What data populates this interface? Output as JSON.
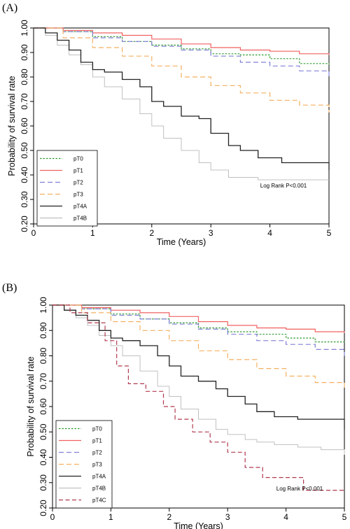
{
  "figure": {
    "panels": [
      {
        "label": "(A)",
        "note": "Log Rank P<0.001"
      },
      {
        "label": "(B)",
        "note": "Log Rank P<0.001"
      }
    ]
  },
  "colors": {
    "pT0": "#2e9a2e",
    "pT1": "#f06060",
    "pT2": "#8080d8",
    "pT3": "#f4b060",
    "pT4A": "#222222",
    "pT4B": "#c0c0c0",
    "pT4C": "#b03a4e"
  },
  "chart_data": [
    {
      "type": "line",
      "panel": "(A)",
      "xlabel": "Time (Years)",
      "ylabel": "Probability of survival rate",
      "xlim": [
        0,
        5
      ],
      "ylim": [
        0.2,
        1.0
      ],
      "xticks": [
        "0",
        "1",
        "2",
        "3",
        "4",
        "5"
      ],
      "yticks": [
        "0.20",
        "0.30",
        "0.40",
        "0.50",
        "0.60",
        "0.70",
        "0.80",
        "0.90",
        "1.00"
      ],
      "legend_position": "bottom-left",
      "annotation": "Log Rank P<0.001",
      "series": [
        {
          "name": "pT0",
          "style": "dotted",
          "x": [
            0,
            0.5,
            1,
            1.5,
            2,
            2.5,
            3,
            3.5,
            4,
            4.5,
            5
          ],
          "y": [
            1.0,
            0.985,
            0.965,
            0.945,
            0.93,
            0.915,
            0.895,
            0.89,
            0.875,
            0.855,
            0.85
          ]
        },
        {
          "name": "pT1",
          "style": "solid",
          "x": [
            0,
            0.5,
            1,
            1.5,
            2,
            2.5,
            3,
            3.5,
            4,
            4.5,
            5
          ],
          "y": [
            1.0,
            0.99,
            0.98,
            0.97,
            0.955,
            0.935,
            0.92,
            0.91,
            0.905,
            0.895,
            0.89
          ]
        },
        {
          "name": "pT2",
          "style": "dashed",
          "x": [
            0,
            0.5,
            1,
            1.5,
            2,
            2.5,
            3,
            3.5,
            4,
            4.5,
            5
          ],
          "y": [
            1.0,
            0.985,
            0.96,
            0.945,
            0.925,
            0.91,
            0.885,
            0.86,
            0.845,
            0.825,
            0.8
          ]
        },
        {
          "name": "pT3",
          "style": "dashed",
          "x": [
            0,
            0.5,
            1,
            1.5,
            2,
            2.5,
            3,
            3.5,
            4,
            4.5,
            5
          ],
          "y": [
            1.0,
            0.96,
            0.92,
            0.885,
            0.845,
            0.8,
            0.765,
            0.735,
            0.705,
            0.685,
            0.655
          ]
        },
        {
          "name": "pT4A",
          "style": "solid-step",
          "x": [
            0,
            0.2,
            0.4,
            0.6,
            0.8,
            1.0,
            1.2,
            1.5,
            1.8,
            2.0,
            2.2,
            2.5,
            2.8,
            3.0,
            3.3,
            3.5,
            3.8,
            4.2,
            4.6,
            5.0
          ],
          "y": [
            1.0,
            0.98,
            0.95,
            0.91,
            0.86,
            0.83,
            0.82,
            0.79,
            0.76,
            0.7,
            0.68,
            0.64,
            0.63,
            0.57,
            0.52,
            0.5,
            0.47,
            0.45,
            0.45,
            0.42
          ]
        },
        {
          "name": "pT4B",
          "style": "solid-step",
          "x": [
            0,
            0.2,
            0.4,
            0.6,
            0.8,
            1.0,
            1.2,
            1.5,
            1.8,
            2.0,
            2.2,
            2.5,
            2.8,
            3.0,
            3.3,
            3.5,
            3.8,
            4.2,
            4.6,
            5.0
          ],
          "y": [
            1.0,
            0.97,
            0.93,
            0.89,
            0.85,
            0.8,
            0.76,
            0.71,
            0.65,
            0.6,
            0.55,
            0.5,
            0.45,
            0.42,
            0.39,
            0.39,
            0.38,
            0.38,
            0.38,
            0.38
          ]
        }
      ]
    },
    {
      "type": "line",
      "panel": "(B)",
      "xlabel": "Time (Years)",
      "ylabel": "Probability of survival rate",
      "xlim": [
        0,
        5
      ],
      "ylim": [
        0.2,
        1.0
      ],
      "xticks": [
        "0",
        "1",
        "2",
        "3",
        "4",
        "5"
      ],
      "yticks": [
        "0.20",
        "0.30",
        "0.40",
        "0.50",
        "0.60",
        "0.70",
        "0.80",
        "0.90",
        "1.00"
      ],
      "legend_position": "bottom-left",
      "annotation": "Log Rank P<0.001",
      "series": [
        {
          "name": "pT0",
          "style": "dotted",
          "x": [
            0,
            0.5,
            1,
            1.5,
            2,
            2.5,
            3,
            3.5,
            4,
            4.5,
            5
          ],
          "y": [
            1.0,
            0.985,
            0.965,
            0.945,
            0.93,
            0.91,
            0.895,
            0.885,
            0.87,
            0.855,
            0.85
          ]
        },
        {
          "name": "pT1",
          "style": "solid",
          "x": [
            0,
            0.5,
            1,
            1.5,
            2,
            2.5,
            3,
            3.5,
            4,
            4.5,
            5
          ],
          "y": [
            1.0,
            0.99,
            0.98,
            0.97,
            0.955,
            0.935,
            0.92,
            0.91,
            0.905,
            0.895,
            0.89
          ]
        },
        {
          "name": "pT2",
          "style": "dashed",
          "x": [
            0,
            0.5,
            1,
            1.5,
            2,
            2.5,
            3,
            3.5,
            4,
            4.5,
            5
          ],
          "y": [
            1.0,
            0.985,
            0.96,
            0.945,
            0.925,
            0.905,
            0.885,
            0.86,
            0.845,
            0.825,
            0.8
          ]
        },
        {
          "name": "pT3",
          "style": "dashed",
          "x": [
            0,
            0.5,
            1,
            1.5,
            2,
            2.5,
            3,
            3.5,
            4,
            4.5,
            5
          ],
          "y": [
            1.0,
            0.97,
            0.935,
            0.9,
            0.86,
            0.82,
            0.785,
            0.75,
            0.72,
            0.695,
            0.67
          ]
        },
        {
          "name": "pT4A",
          "style": "solid-step",
          "x": [
            0,
            0.2,
            0.4,
            0.6,
            0.8,
            1.0,
            1.2,
            1.5,
            1.8,
            2.0,
            2.2,
            2.5,
            2.8,
            3.0,
            3.3,
            3.5,
            3.8,
            4.2,
            4.6,
            5.0
          ],
          "y": [
            1.0,
            0.98,
            0.96,
            0.94,
            0.9,
            0.87,
            0.86,
            0.84,
            0.8,
            0.76,
            0.72,
            0.7,
            0.67,
            0.64,
            0.61,
            0.58,
            0.56,
            0.55,
            0.55,
            0.51
          ]
        },
        {
          "name": "pT4B",
          "style": "solid-step",
          "x": [
            0,
            0.2,
            0.4,
            0.6,
            0.8,
            1.0,
            1.2,
            1.5,
            1.8,
            2.0,
            2.2,
            2.5,
            2.8,
            3.0,
            3.3,
            3.5,
            3.8,
            4.2,
            4.6,
            5.0
          ],
          "y": [
            1.0,
            0.98,
            0.95,
            0.92,
            0.88,
            0.84,
            0.8,
            0.74,
            0.68,
            0.64,
            0.59,
            0.55,
            0.51,
            0.49,
            0.47,
            0.46,
            0.45,
            0.44,
            0.43,
            0.41
          ]
        },
        {
          "name": "pT4C",
          "style": "dashed-step",
          "x": [
            0,
            0.3,
            0.6,
            0.9,
            1.1,
            1.3,
            1.6,
            1.9,
            2.1,
            2.4,
            2.7,
            3.0,
            3.3,
            3.6,
            3.8,
            4.0,
            4.3,
            4.6,
            5.0
          ],
          "y": [
            1.0,
            0.97,
            0.93,
            0.86,
            0.76,
            0.69,
            0.66,
            0.6,
            0.55,
            0.5,
            0.46,
            0.42,
            0.36,
            0.32,
            0.32,
            0.32,
            0.27,
            0.27,
            0.27
          ]
        }
      ]
    }
  ]
}
